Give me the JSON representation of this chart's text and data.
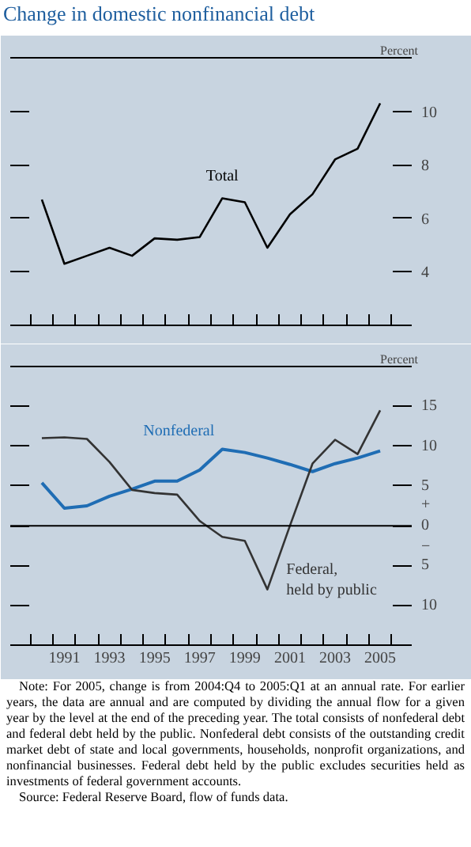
{
  "chart_data": [
    {
      "type": "line",
      "title": "Change in domestic nonfinancial debt",
      "ylabel": "Percent",
      "x": [
        1990,
        1991,
        1992,
        1993,
        1994,
        1995,
        1996,
        1997,
        1998,
        1999,
        2000,
        2001,
        2002,
        2003,
        2004,
        2005
      ],
      "series": [
        {
          "name": "Total",
          "color": "#000000",
          "values": [
            6.7,
            4.3,
            4.6,
            4.9,
            4.6,
            5.25,
            5.2,
            5.3,
            6.75,
            6.6,
            4.9,
            6.15,
            6.9,
            8.2,
            8.6,
            10.3
          ]
        }
      ],
      "xlim": [
        1988.6,
        2006.4
      ],
      "xticks": [
        {
          "value": 1989.5,
          "label": null
        },
        {
          "value": 1990.5,
          "label": null
        },
        {
          "value": 1991.5,
          "label": null
        },
        {
          "value": 1992.5,
          "label": null
        },
        {
          "value": 1993.5,
          "label": null
        },
        {
          "value": 1994.5,
          "label": null
        },
        {
          "value": 1995.5,
          "label": null
        },
        {
          "value": 1996.5,
          "label": null
        },
        {
          "value": 1997.5,
          "label": null
        },
        {
          "value": 1998.5,
          "label": null
        },
        {
          "value": 1999.5,
          "label": null
        },
        {
          "value": 2000.5,
          "label": null
        },
        {
          "value": 2001.5,
          "label": null
        },
        {
          "value": 2002.5,
          "label": null
        },
        {
          "value": 2003.5,
          "label": null
        },
        {
          "value": 2004.5,
          "label": null
        },
        {
          "value": 2005.5,
          "label": null
        }
      ],
      "ylim": [
        2,
        12
      ],
      "yticks": [
        4,
        6,
        8,
        10
      ],
      "tick_labels": "y"
    },
    {
      "type": "line",
      "ylabel": "Percent",
      "x": [
        1990,
        1991,
        1992,
        1993,
        1994,
        1995,
        1996,
        1997,
        1998,
        1999,
        2000,
        2001,
        2002,
        2003,
        2004,
        2005
      ],
      "series": [
        {
          "name": "Nonfederal",
          "color": "#1f6db4",
          "values": [
            5.4,
            2.2,
            2.5,
            3.7,
            4.6,
            5.6,
            5.6,
            7.0,
            9.6,
            9.2,
            8.5,
            7.7,
            6.8,
            7.8,
            8.5,
            9.4
          ]
        },
        {
          "name": "Federal,\nheld by public",
          "color": "#333333",
          "values": [
            11.0,
            11.1,
            10.9,
            8.0,
            4.5,
            4.1,
            3.9,
            0.6,
            -1.4,
            -1.9,
            -8.0,
            0,
            7.8,
            10.8,
            9.0,
            14.5
          ]
        }
      ],
      "xlim": [
        1988.6,
        2006.4
      ],
      "xticks": [
        {
          "value": 1989.5,
          "label": null
        },
        {
          "value": 1990.5,
          "label": null
        },
        {
          "value": 1991,
          "label": "1991"
        },
        {
          "value": 1991.5,
          "label": null
        },
        {
          "value": 1992.5,
          "label": null
        },
        {
          "value": 1993,
          "label": "1993"
        },
        {
          "value": 1993.5,
          "label": null
        },
        {
          "value": 1994.5,
          "label": null
        },
        {
          "value": 1995,
          "label": "1995"
        },
        {
          "value": 1995.5,
          "label": null
        },
        {
          "value": 1996.5,
          "label": null
        },
        {
          "value": 1997,
          "label": "1997"
        },
        {
          "value": 1997.5,
          "label": null
        },
        {
          "value": 1998.5,
          "label": null
        },
        {
          "value": 1999,
          "label": "1999"
        },
        {
          "value": 1999.5,
          "label": null
        },
        {
          "value": 2000.5,
          "label": null
        },
        {
          "value": 2001,
          "label": "2001"
        },
        {
          "value": 2001.5,
          "label": null
        },
        {
          "value": 2002.5,
          "label": null
        },
        {
          "value": 2003,
          "label": "2003"
        },
        {
          "value": 2003.5,
          "label": null
        },
        {
          "value": 2004.5,
          "label": null
        },
        {
          "value": 2005,
          "label": "2005"
        },
        {
          "value": 2005.5,
          "label": null
        }
      ],
      "ylim": [
        -15,
        20
      ],
      "yticks": [
        {
          "value": -10,
          "label": "10"
        },
        {
          "value": -5,
          "label": "5"
        },
        {
          "value": 0,
          "label": "+\n0\n−"
        },
        5,
        10,
        15
      ],
      "ref_lines": [
        {
          "axis": "y",
          "value": 0,
          "color": "#000000"
        }
      ],
      "annotations": [
        "Note: For 2005, change is from 2004:Q4 to 2005:Q1 at an annual rate. For earlier years, the data are annual and are computed by dividing the annual flow for a given year by the level at the end of the preceding year. The total consists of nonfederal debt and federal debt held by the public. Nonfederal debt consists of the outstanding credit market debt of state and local governments, households, nonprofit organizations, and nonfinancial businesses. Federal debt held by the public excludes securities held as investments of federal government accounts.",
        "Source: Federal Reserve Board, flow of funds data."
      ]
    }
  ]
}
